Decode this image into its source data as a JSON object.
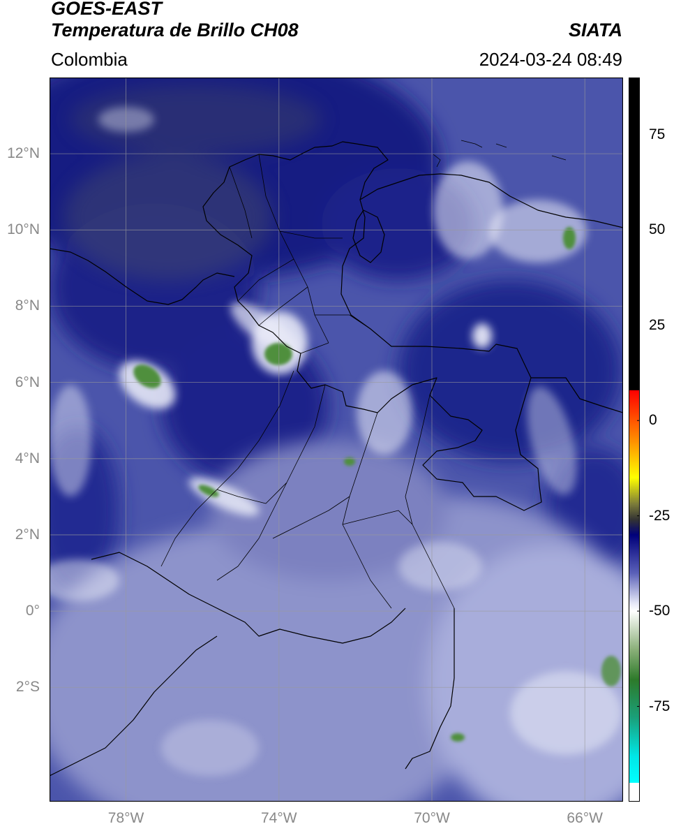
{
  "header": {
    "satellite": "GOES-EAST",
    "product": "Temperatura de Brillo CH08",
    "organization": "SIATA",
    "region": "Colombia",
    "datetime": "2024-03-24 08:49"
  },
  "map": {
    "extent_lon": [
      -80,
      -65
    ],
    "extent_lat": [
      -5,
      14
    ],
    "lat_ticks": [
      {
        "value": 12,
        "label": "12°N"
      },
      {
        "value": 10,
        "label": "10°N"
      },
      {
        "value": 8,
        "label": "8°N"
      },
      {
        "value": 6,
        "label": "6°N"
      },
      {
        "value": 4,
        "label": "4°N"
      },
      {
        "value": 2,
        "label": "2°N"
      },
      {
        "value": 0,
        "label": "0°"
      },
      {
        "value": -2,
        "label": "2°S"
      }
    ],
    "lon_ticks": [
      {
        "value": -78,
        "label": "78°W"
      },
      {
        "value": -74,
        "label": "74°W"
      },
      {
        "value": -70,
        "label": "70°W"
      },
      {
        "value": -66,
        "label": "66°W"
      }
    ],
    "colors": {
      "background": "#5560b0",
      "deep_blue": "#141c82",
      "light_blue": "#9aa0d2",
      "white": "#f2f3fb",
      "green": "#4f8f3c",
      "border": "#000000",
      "grid": "#9a9a9a"
    }
  },
  "colorbar": {
    "range": [
      -100,
      90
    ],
    "ticks": [
      {
        "value": 75,
        "label": "75"
      },
      {
        "value": 50,
        "label": "50"
      },
      {
        "value": 25,
        "label": "25"
      },
      {
        "value": 0,
        "label": "0"
      },
      {
        "value": -25,
        "label": "-25"
      },
      {
        "value": -50,
        "label": "-50"
      },
      {
        "value": -75,
        "label": "-75"
      }
    ],
    "stops": [
      {
        "value": 90,
        "color": "#000000"
      },
      {
        "value": 8,
        "color": "#000000"
      },
      {
        "value": 7.9,
        "color": "#ff0000"
      },
      {
        "value": -5,
        "color": "#ff8c00"
      },
      {
        "value": -15,
        "color": "#ffff00"
      },
      {
        "value": -22,
        "color": "#7a7a3a"
      },
      {
        "value": -26,
        "color": "#333333"
      },
      {
        "value": -30,
        "color": "#00007a"
      },
      {
        "value": -40,
        "color": "#5a60b8"
      },
      {
        "value": -48,
        "color": "#e6e8f7"
      },
      {
        "value": -50,
        "color": "#ffffff"
      },
      {
        "value": -60,
        "color": "#8bb07a"
      },
      {
        "value": -68,
        "color": "#2d7a2a"
      },
      {
        "value": -78,
        "color": "#1aa07a"
      },
      {
        "value": -88,
        "color": "#00e6e6"
      },
      {
        "value": -95,
        "color": "#00ffff"
      },
      {
        "value": -95.1,
        "color": "#ffffff"
      },
      {
        "value": -100,
        "color": "#ffffff"
      }
    ]
  }
}
